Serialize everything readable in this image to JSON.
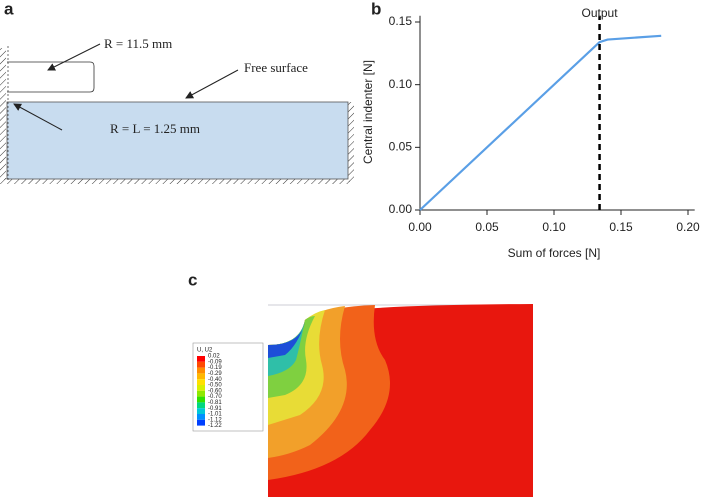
{
  "panel_a": {
    "label": "a",
    "radius_label": "R = 11.5 mm",
    "surface_label": "Free surface",
    "edge_label": "R = L = 1.25 mm"
  },
  "chart_data": {
    "type": "line",
    "panel_label": "b",
    "xlabel": "Sum of forces [N]",
    "ylabel": "Central indenter [N]",
    "x": [
      0,
      0.134,
      0.14,
      0.18
    ],
    "series": [
      {
        "name": "Central indenter",
        "color": "#5a9fe6",
        "values": [
          0,
          0.134,
          0.136,
          0.139
        ]
      }
    ],
    "xlim": [
      0,
      0.205
    ],
    "ylim": [
      0,
      0.155
    ],
    "xticks": [
      {
        "value": 0,
        "label": "0.00"
      },
      {
        "value": 0.05,
        "label": "0.05"
      },
      {
        "value": 0.1,
        "label": "0.10"
      },
      {
        "value": 0.15,
        "label": "0.15"
      },
      {
        "value": 0.2,
        "label": "0.20"
      }
    ],
    "yticks": [
      {
        "value": 0,
        "label": "0.00"
      },
      {
        "value": 0.05,
        "label": "0.05"
      },
      {
        "value": 0.1,
        "label": "0.10"
      },
      {
        "value": 0.15,
        "label": "0.15"
      }
    ],
    "annotation": {
      "text": "Output",
      "x": 0.134
    }
  },
  "panel_c": {
    "label": "c",
    "legend": {
      "title": "U, U2",
      "values": [
        "0.02",
        "-0.09",
        "-0.19",
        "-0.29",
        "-0.40",
        "-0.50",
        "-0.60",
        "-0.70",
        "-0.81",
        "-0.91",
        "-1.01",
        "-1.12",
        "-1.22"
      ]
    }
  }
}
